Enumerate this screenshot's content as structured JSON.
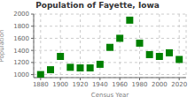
{
  "chart_data": {
    "type": "scatter",
    "title": "Population of Fayette, Iowa",
    "xlabel": "Census Year",
    "ylabel": "Population",
    "x": [
      1880,
      1890,
      1900,
      1910,
      1920,
      1930,
      1940,
      1950,
      1960,
      1970,
      1980,
      1990,
      2000,
      2010,
      2020
    ],
    "values": [
      1000,
      1080,
      1300,
      1120,
      1110,
      1110,
      1170,
      1450,
      1600,
      1900,
      1520,
      1330,
      1300,
      1360,
      1250
    ],
    "color": "#008000",
    "marker": "square",
    "xlim": [
      1873,
      2027
    ],
    "ylim": [
      950,
      2000
    ],
    "xticks": [
      1880,
      1900,
      1920,
      1940,
      1960,
      1980,
      2000,
      2020
    ],
    "yticks": [
      1000,
      1200,
      1400,
      1600,
      1800,
      2000
    ],
    "grid": true
  }
}
